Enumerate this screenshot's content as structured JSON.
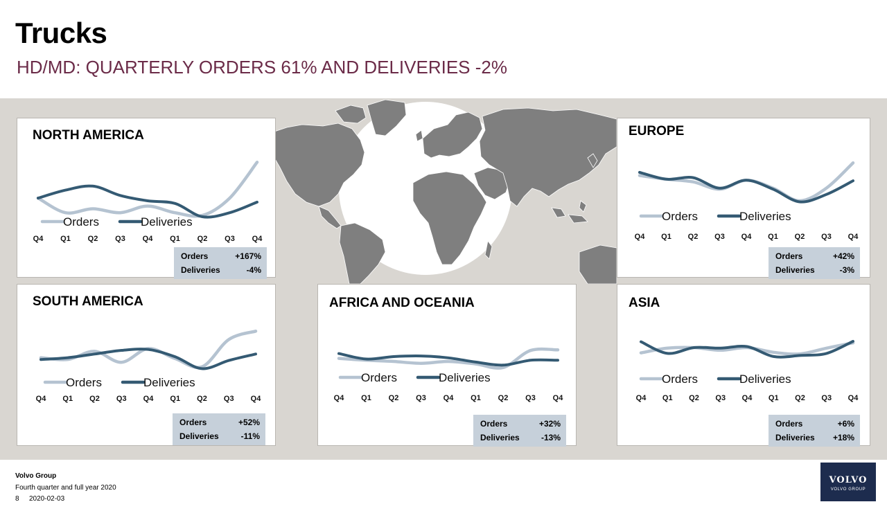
{
  "title": "Trucks",
  "subtitle": "HD/MD: QUARTERLY ORDERS 61% AND DELIVERIES -2%",
  "colors": {
    "orders": "#b5c3d1",
    "deliveries": "#345a73",
    "band": "#d9d6d1",
    "map": "#7f7f7f",
    "title_accent": "#6b2b48",
    "logo": "#1d2c4e"
  },
  "legend": {
    "orders": "Orders",
    "deliveries": "Deliveries"
  },
  "chart_data": [
    {
      "type": "line",
      "title": "NORTH AMERICA",
      "categories": [
        "Q4",
        "Q1",
        "Q2",
        "Q3",
        "Q4",
        "Q1",
        "Q2",
        "Q3",
        "Q4"
      ],
      "series": [
        {
          "name": "Orders",
          "values": [
            28,
            6,
            12,
            6,
            16,
            6,
            2,
            28,
            82
          ]
        },
        {
          "name": "Deliveries",
          "values": [
            28,
            40,
            46,
            32,
            24,
            20,
            0,
            6,
            22
          ]
        }
      ],
      "ylim": [
        0,
        100
      ],
      "legend": "bottom",
      "stats": [
        {
          "label": "Orders",
          "value": "+167%"
        },
        {
          "label": "Deliveries",
          "value": "-4%"
        }
      ]
    },
    {
      "type": "line",
      "title": "EUROPE",
      "categories": [
        "Q4",
        "Q1",
        "Q2",
        "Q3",
        "Q4",
        "Q1",
        "Q2",
        "Q3",
        "Q4"
      ],
      "series": [
        {
          "name": "Orders",
          "values": [
            52,
            45,
            40,
            26,
            43,
            28,
            4,
            28,
            76
          ]
        },
        {
          "name": "Deliveries",
          "values": [
            58,
            45,
            48,
            28,
            43,
            26,
            2,
            16,
            42
          ]
        }
      ],
      "ylim": [
        0,
        100
      ],
      "legend": "bottom",
      "stats": [
        {
          "label": "Orders",
          "value": "+42%"
        },
        {
          "label": "Deliveries",
          "value": "-3%"
        }
      ]
    },
    {
      "type": "line",
      "title": "SOUTH AMERICA",
      "categories": [
        "Q4",
        "Q1",
        "Q2",
        "Q3",
        "Q4",
        "Q1",
        "Q2",
        "Q3",
        "Q4"
      ],
      "series": [
        {
          "name": "Orders",
          "values": [
            40,
            36,
            54,
            30,
            60,
            38,
            20,
            80,
            98
          ]
        },
        {
          "name": "Deliveries",
          "values": [
            36,
            40,
            48,
            56,
            58,
            42,
            16,
            34,
            48
          ]
        }
      ],
      "ylim": [
        0,
        100
      ],
      "legend": "bottom",
      "stats": [
        {
          "label": "Orders",
          "value": "+52%"
        },
        {
          "label": "Deliveries",
          "value": "-11%"
        }
      ]
    },
    {
      "type": "line",
      "title": "AFRICA AND OCEANIA",
      "categories": [
        "Q4",
        "Q1",
        "Q2",
        "Q3",
        "Q4",
        "Q1",
        "Q2",
        "Q3",
        "Q4"
      ],
      "series": [
        {
          "name": "Orders",
          "values": [
            44,
            38,
            34,
            28,
            34,
            26,
            14,
            70,
            72
          ]
        },
        {
          "name": "Deliveries",
          "values": [
            60,
            42,
            50,
            52,
            46,
            32,
            22,
            38,
            38
          ]
        }
      ],
      "ylim": [
        0,
        100
      ],
      "legend": "bottom",
      "stats": [
        {
          "label": "Orders",
          "value": "+32%"
        },
        {
          "label": "Deliveries",
          "value": "-13%"
        }
      ]
    },
    {
      "type": "line",
      "title": "ASIA",
      "categories": [
        "Q4",
        "Q1",
        "Q2",
        "Q3",
        "Q4",
        "Q1",
        "Q2",
        "Q3",
        "Q4"
      ],
      "series": [
        {
          "name": "Orders",
          "values": [
            30,
            48,
            50,
            40,
            50,
            32,
            26,
            48,
            68
          ]
        },
        {
          "name": "Deliveries",
          "values": [
            72,
            28,
            50,
            48,
            54,
            16,
            20,
            28,
            74
          ]
        }
      ],
      "ylim": [
        0,
        100
      ],
      "legend": "bottom",
      "stats": [
        {
          "label": "Orders",
          "value": "+6%"
        },
        {
          "label": "Deliveries",
          "value": "+18%"
        }
      ]
    }
  ],
  "footer": {
    "company": "Volvo Group",
    "report": "Fourth quarter and full year 2020",
    "page": "8",
    "date": "2020-02-03"
  },
  "logo": {
    "word": "VOLVO",
    "sub": "VOLVO GROUP",
    "icon": "volvo-group-logo"
  }
}
